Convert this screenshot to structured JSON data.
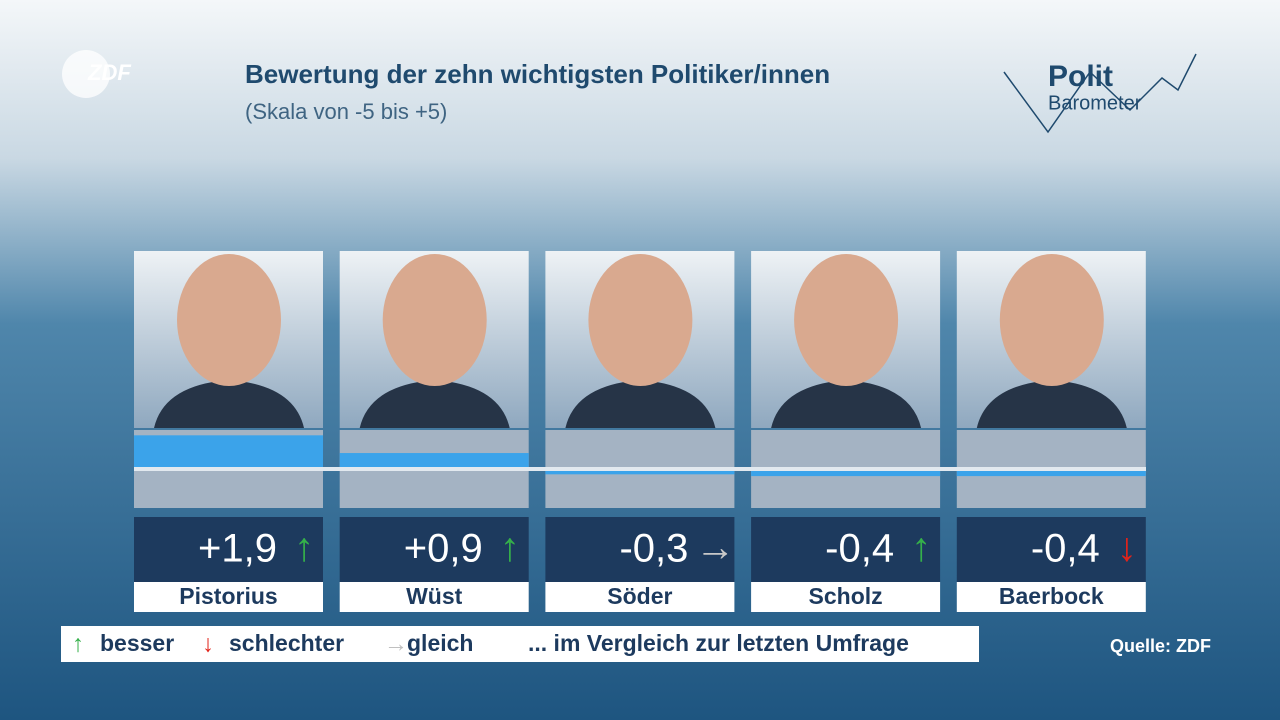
{
  "header": {
    "logo": "ZDF",
    "title": "Bewertung der zehn wichtigsten Politiker/innen",
    "subtitle": "(Skala von -5 bis +5)",
    "brand_top": "Polit",
    "brand_bottom": "Barometer"
  },
  "chart_data": {
    "type": "bar",
    "categories": [
      "Pistorius",
      "Wüst",
      "Söder",
      "Scholz",
      "Baerbock"
    ],
    "values": [
      1.9,
      0.9,
      -0.3,
      -0.4,
      -0.4
    ],
    "value_labels": [
      "+1,9",
      "+0,9",
      "-0,3",
      "-0,4",
      "-0,4"
    ],
    "trend": [
      "↑",
      "↑",
      "→",
      "↑",
      "↓"
    ],
    "trend_colors": [
      "#35b04a",
      "#35b04a",
      "#c8c8c8",
      "#35b04a",
      "#e2231a"
    ],
    "color": "#3ba3ea",
    "ylim": [
      -2.2,
      2.2
    ]
  },
  "legend": {
    "items": [
      {
        "symbol": "↑",
        "label": "besser",
        "color": "#35b04a"
      },
      {
        "symbol": "↓",
        "label": "schlechter",
        "color": "#e2231a"
      },
      {
        "symbol": "→",
        "label": "gleich",
        "color": "#c0c0c0"
      }
    ],
    "note": "... im Vergleich zur letzten Umfrage"
  },
  "source": "Quelle: ZDF"
}
